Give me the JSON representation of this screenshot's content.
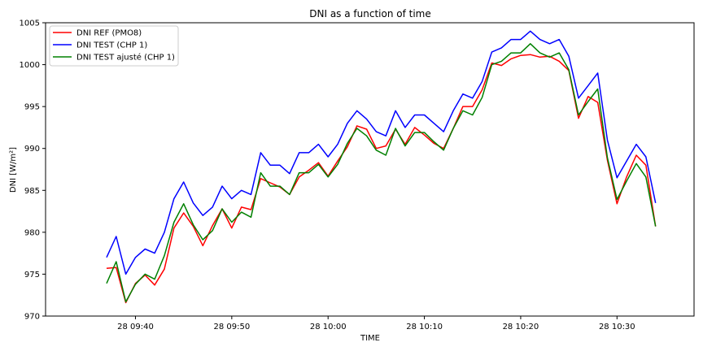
{
  "chart_data": {
    "type": "line",
    "title": "DNI as a function of time",
    "xlabel": "TIME",
    "ylabel": "DNI [W/m²]",
    "ylim": [
      970,
      1005
    ],
    "y_ticks": [
      970,
      975,
      980,
      985,
      990,
      995,
      1000,
      1005
    ],
    "xlim": [
      "09:30:40",
      "10:38:00"
    ],
    "x_ticks": [
      {
        "time": "09:40",
        "label": "28 09:40"
      },
      {
        "time": "09:50",
        "label": "28 09:50"
      },
      {
        "time": "10:00",
        "label": "28 10:00"
      },
      {
        "time": "10:10",
        "label": "28 10:10"
      },
      {
        "time": "10:20",
        "label": "28 10:20"
      },
      {
        "time": "10:30",
        "label": "28 10:30"
      }
    ],
    "grid": false,
    "legend_position": "upper-left",
    "x": [
      "09:37",
      "09:38",
      "09:39",
      "09:40",
      "09:41",
      "09:42",
      "09:43",
      "09:44",
      "09:45",
      "09:46",
      "09:47",
      "09:48",
      "09:49",
      "09:50",
      "09:51",
      "09:52",
      "09:53",
      "09:54",
      "09:55",
      "09:56",
      "09:57",
      "09:58",
      "09:59",
      "10:00",
      "10:01",
      "10:02",
      "10:03",
      "10:04",
      "10:05",
      "10:06",
      "10:07",
      "10:08",
      "10:09",
      "10:10",
      "10:11",
      "10:12",
      "10:13",
      "10:14",
      "10:15",
      "10:16",
      "10:17",
      "10:18",
      "10:19",
      "10:20",
      "10:21",
      "10:22",
      "10:23",
      "10:24",
      "10:25",
      "10:26",
      "10:27",
      "10:28",
      "10:29",
      "10:30",
      "10:31",
      "10:32",
      "10:33",
      "10:34"
    ],
    "series": [
      {
        "name": "DNI REF (PMO8)",
        "color": "#ff0000",
        "values": [
          975.7,
          975.8,
          971.6,
          973.9,
          974.9,
          973.7,
          975.6,
          980.5,
          982.3,
          980.7,
          978.4,
          980.8,
          982.8,
          980.5,
          983.0,
          982.7,
          986.4,
          985.9,
          985.4,
          984.5,
          986.6,
          987.4,
          988.3,
          986.7,
          988.5,
          990.2,
          992.7,
          992.3,
          990.0,
          990.3,
          992.3,
          990.5,
          992.5,
          991.6,
          990.6,
          990.0,
          992.4,
          995.0,
          995.0,
          997.0,
          1000.2,
          999.9,
          1000.7,
          1001.1,
          1001.2,
          1000.9,
          1001.0,
          1000.4,
          999.3,
          993.6,
          996.2,
          995.5,
          988.6,
          983.4,
          986.6,
          989.2,
          988.0,
          980.7
        ]
      },
      {
        "name": "DNI TEST (CHP 1)",
        "color": "#0000ff",
        "values": [
          977.0,
          979.5,
          975.0,
          977.0,
          978.0,
          977.5,
          980.0,
          984.0,
          986.0,
          983.5,
          982.0,
          983.0,
          985.5,
          984.0,
          985.0,
          984.5,
          989.5,
          988.0,
          988.0,
          987.0,
          989.5,
          989.5,
          990.5,
          989.0,
          990.5,
          993.0,
          994.5,
          993.5,
          992.0,
          991.5,
          994.5,
          992.5,
          994.0,
          994.0,
          993.0,
          992.0,
          994.5,
          996.5,
          996.0,
          998.0,
          1001.5,
          1002.0,
          1003.0,
          1003.0,
          1004.0,
          1003.0,
          1002.5,
          1003.0,
          1001.0,
          996.0,
          997.5,
          999.0,
          991.0,
          986.5,
          988.5,
          990.5,
          989.0,
          983.5
        ]
      },
      {
        "name": "DNI TEST ajusté (CHP 1)",
        "color": "#008000",
        "values": [
          973.9,
          976.5,
          971.7,
          973.8,
          975.0,
          974.4,
          977.2,
          981.2,
          983.4,
          980.9,
          979.1,
          980.2,
          982.8,
          981.2,
          982.4,
          981.8,
          987.1,
          985.5,
          985.5,
          984.5,
          987.1,
          987.1,
          988.1,
          986.6,
          988.1,
          990.6,
          992.4,
          991.5,
          989.8,
          989.2,
          992.4,
          990.3,
          991.9,
          991.9,
          990.8,
          989.8,
          992.4,
          994.5,
          994.0,
          996.1,
          1000.0,
          1000.4,
          1001.4,
          1001.4,
          1002.5,
          1001.4,
          1000.9,
          1001.4,
          999.4,
          994.0,
          995.6,
          997.1,
          988.9,
          983.9,
          986.1,
          988.2,
          986.6,
          980.7
        ]
      }
    ]
  }
}
